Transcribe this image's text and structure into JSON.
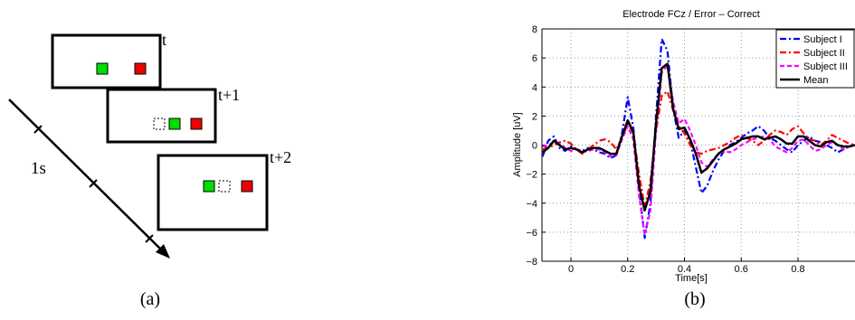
{
  "panel_a": {
    "caption": "(a)",
    "frames": [
      {
        "label": "t",
        "squares": [
          {
            "color": "#00dd00",
            "dashed": false
          },
          {
            "color": "#ee0000",
            "dashed": false
          }
        ]
      },
      {
        "label": "t+1",
        "squares": [
          {
            "color": "#ffffff",
            "dashed": true
          },
          {
            "color": "#00dd00",
            "dashed": false
          },
          {
            "color": "#ee0000",
            "dashed": false
          }
        ]
      },
      {
        "label": "t+2",
        "squares": [
          {
            "color": "#00dd00",
            "dashed": false
          },
          {
            "color": "#ffffff",
            "dashed": true
          },
          {
            "color": "#ee0000",
            "dashed": false
          }
        ]
      }
    ],
    "time_label": "1s"
  },
  "panel_b": {
    "caption": "(b)"
  },
  "chart_data": {
    "type": "line",
    "title": "Electrode FCz / Error – Correct",
    "xlabel": "Time[s]",
    "ylabel": "Amplitude [uV]",
    "xlim": [
      -0.1,
      1.0
    ],
    "ylim": [
      -8,
      8
    ],
    "xticks": [
      0,
      0.2,
      0.4,
      0.6,
      0.8
    ],
    "xtick_labels": [
      "0",
      "0.2",
      "0.4",
      "0.6",
      "0.8"
    ],
    "yticks": [
      -8,
      -6,
      -4,
      -2,
      0,
      2,
      4,
      6,
      8
    ],
    "ytick_labels": [
      "−8",
      "−6",
      "−4",
      "−2",
      "0",
      "2",
      "4",
      "6",
      "8"
    ],
    "grid": true,
    "legend_position": "top-right",
    "x": [
      -0.1,
      -0.08,
      -0.06,
      -0.04,
      -0.02,
      0.0,
      0.02,
      0.04,
      0.06,
      0.08,
      0.1,
      0.12,
      0.14,
      0.16,
      0.18,
      0.2,
      0.22,
      0.24,
      0.26,
      0.28,
      0.3,
      0.32,
      0.34,
      0.36,
      0.38,
      0.4,
      0.42,
      0.44,
      0.46,
      0.48,
      0.5,
      0.52,
      0.54,
      0.56,
      0.58,
      0.6,
      0.62,
      0.64,
      0.66,
      0.68,
      0.7,
      0.72,
      0.74,
      0.76,
      0.78,
      0.8,
      0.82,
      0.84,
      0.86,
      0.88,
      0.9,
      0.92,
      0.94,
      0.96,
      0.98,
      1.0
    ],
    "series": [
      {
        "name": "Subject I",
        "color": "#0000ff",
        "style": "dashdot",
        "values": [
          -0.8,
          0.3,
          0.6,
          -0.2,
          -0.4,
          -0.1,
          -0.3,
          -0.4,
          -0.2,
          -0.3,
          -0.5,
          -0.6,
          -0.9,
          -0.7,
          0.8,
          3.3,
          1.2,
          -3.0,
          -6.4,
          -4.0,
          2.0,
          7.3,
          6.5,
          2.5,
          0.5,
          1.0,
          0.3,
          -1.5,
          -3.3,
          -2.8,
          -1.8,
          -1.0,
          -0.4,
          0.0,
          0.2,
          0.5,
          0.8,
          1.0,
          1.3,
          1.0,
          0.5,
          0.3,
          0.0,
          -0.3,
          -0.5,
          0.0,
          0.3,
          0.6,
          0.3,
          0.2,
          0.0,
          -0.2,
          -0.5,
          -0.3,
          -0.1,
          0.0
        ]
      },
      {
        "name": "Subject II",
        "color": "#ff0000",
        "style": "dashdot",
        "values": [
          -0.3,
          -0.2,
          0.0,
          0.2,
          0.3,
          0.1,
          -0.3,
          -0.6,
          -0.3,
          0.0,
          0.3,
          0.4,
          0.2,
          -0.3,
          0.5,
          1.5,
          0.8,
          -2.0,
          -4.3,
          -2.5,
          1.0,
          3.4,
          3.7,
          2.4,
          1.3,
          0.8,
          0.0,
          -0.5,
          -0.6,
          -0.4,
          -0.3,
          -0.2,
          0.0,
          0.2,
          0.5,
          0.7,
          0.5,
          0.3,
          0.0,
          0.3,
          0.7,
          1.0,
          0.9,
          0.7,
          1.1,
          1.3,
          0.8,
          0.4,
          0.3,
          0.0,
          0.3,
          0.7,
          0.5,
          0.3,
          0.1,
          0.0
        ]
      },
      {
        "name": "Subject III",
        "color": "#ff00ff",
        "style": "dashed",
        "values": [
          -0.1,
          0.0,
          0.2,
          0.1,
          -0.2,
          -0.4,
          -0.3,
          -0.5,
          -0.4,
          -0.3,
          -0.3,
          -0.5,
          -0.8,
          -0.7,
          0.4,
          1.3,
          0.4,
          -3.5,
          -6.2,
          -4.5,
          1.0,
          5.0,
          5.5,
          3.0,
          1.5,
          1.8,
          1.0,
          0.0,
          -1.2,
          -1.5,
          -1.0,
          -0.6,
          -0.4,
          -0.5,
          -0.3,
          0.0,
          0.2,
          0.4,
          0.5,
          0.6,
          0.4,
          -0.1,
          -0.3,
          -0.5,
          -0.2,
          0.3,
          0.4,
          0.0,
          -0.4,
          -0.3,
          0.0,
          0.2,
          0.0,
          -0.3,
          -0.1,
          0.0
        ]
      },
      {
        "name": "Mean",
        "color": "#000000",
        "style": "solid",
        "values": [
          -0.5,
          -0.2,
          0.3,
          0.0,
          -0.3,
          -0.2,
          -0.3,
          -0.5,
          -0.3,
          -0.2,
          -0.2,
          -0.4,
          -0.6,
          -0.6,
          0.6,
          1.7,
          0.9,
          -2.8,
          -4.5,
          -3.2,
          1.5,
          5.3,
          5.6,
          2.5,
          1.1,
          1.2,
          0.4,
          -0.6,
          -1.9,
          -1.6,
          -1.1,
          -0.6,
          -0.3,
          -0.1,
          0.1,
          0.4,
          0.5,
          0.6,
          0.6,
          0.4,
          0.5,
          0.6,
          0.4,
          0.1,
          0.1,
          0.6,
          0.6,
          0.3,
          0.0,
          -0.1,
          0.2,
          0.3,
          0.0,
          -0.1,
          -0.1,
          0.0
        ]
      }
    ]
  }
}
